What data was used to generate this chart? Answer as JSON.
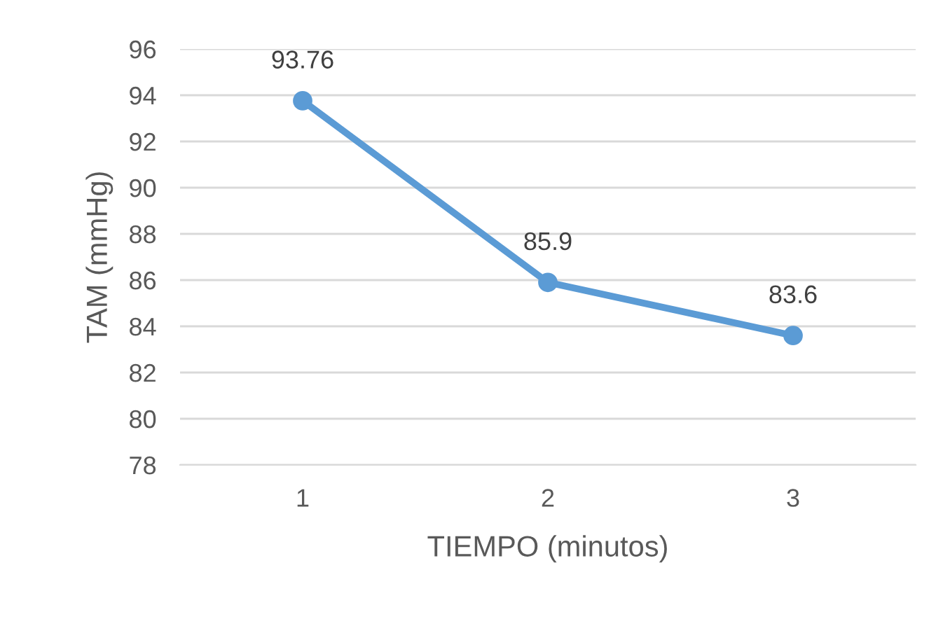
{
  "chart_data": {
    "type": "line",
    "categories": [
      "1",
      "2",
      "3"
    ],
    "xlabel": "TIEMPO (minutos)",
    "ylabel": "TAM (mmHg)",
    "series": [
      {
        "color": "#5b9bd5",
        "values": [
          93.76,
          85.9,
          83.6
        ]
      }
    ],
    "ylim": [
      78,
      96
    ],
    "yticks": [
      78,
      80,
      82,
      84,
      86,
      88,
      90,
      92,
      94,
      96
    ],
    "grid": "y",
    "marker": "circle",
    "line_style": "solid",
    "data_labels": true,
    "legend": false
  }
}
